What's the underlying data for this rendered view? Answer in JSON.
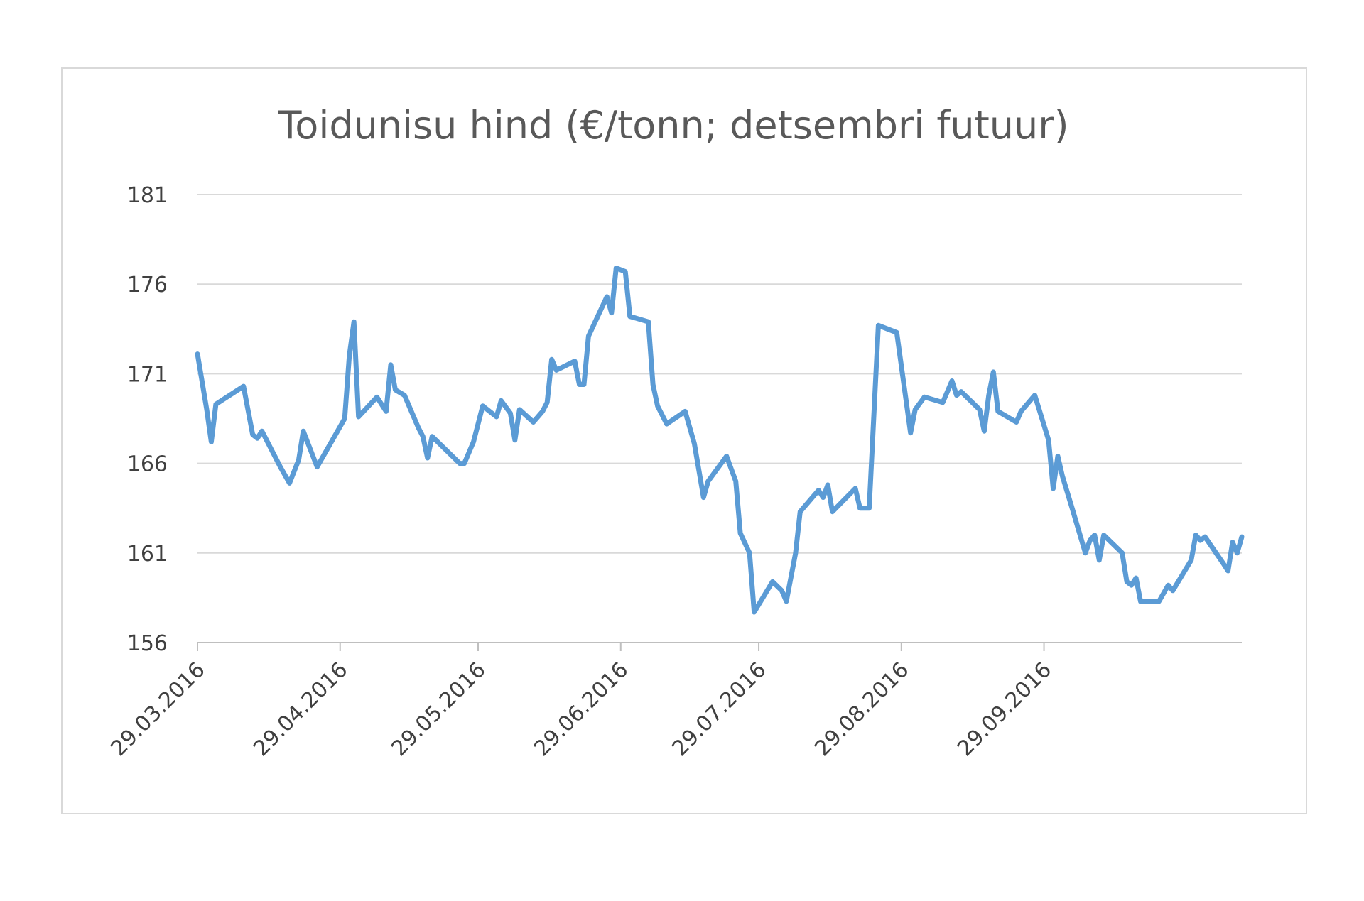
{
  "chart_data": {
    "type": "line",
    "title": "Toidunisu hind (€/tonn; detsembri futuur)",
    "xlabel": "",
    "ylabel": "",
    "ylim": [
      156,
      181
    ],
    "y_ticks": [
      "156",
      "161",
      "166",
      "171",
      "176",
      "181"
    ],
    "x_ticks": [
      "29.03.2016",
      "29.04.2016",
      "29.05.2016",
      "29.06.2016",
      "29.07.2016",
      "29.08.2016",
      "29.09.2016"
    ],
    "grid": true,
    "legend": "none",
    "colors": {
      "line": "#5b9bd5"
    },
    "series": [
      {
        "points": [
          [
            "2016-03-29",
            172.1
          ],
          [
            "2016-03-31",
            169.0
          ],
          [
            "2016-04-01",
            167.2
          ],
          [
            "2016-04-02",
            169.3
          ],
          [
            "2016-04-08",
            170.3
          ],
          [
            "2016-04-10",
            167.6
          ],
          [
            "2016-04-11",
            167.4
          ],
          [
            "2016-04-12",
            167.8
          ],
          [
            "2016-04-16",
            165.8
          ],
          [
            "2016-04-18",
            164.9
          ],
          [
            "2016-04-20",
            166.2
          ],
          [
            "2016-04-21",
            167.8
          ],
          [
            "2016-04-24",
            165.8
          ],
          [
            "2016-04-30",
            168.5
          ],
          [
            "2016-05-01",
            172.0
          ],
          [
            "2016-05-02",
            173.9
          ],
          [
            "2016-05-03",
            168.6
          ],
          [
            "2016-05-07",
            169.7
          ],
          [
            "2016-05-09",
            168.9
          ],
          [
            "2016-05-10",
            171.5
          ],
          [
            "2016-05-11",
            170.1
          ],
          [
            "2016-05-13",
            169.8
          ],
          [
            "2016-05-16",
            168.0
          ],
          [
            "2016-05-17",
            167.5
          ],
          [
            "2016-05-18",
            166.3
          ],
          [
            "2016-05-19",
            167.5
          ],
          [
            "2016-05-25",
            166.0
          ],
          [
            "2016-05-26",
            166.0
          ],
          [
            "2016-05-28",
            167.2
          ],
          [
            "2016-05-30",
            169.2
          ],
          [
            "2016-06-02",
            168.6
          ],
          [
            "2016-06-03",
            169.5
          ],
          [
            "2016-06-05",
            168.8
          ],
          [
            "2016-06-06",
            167.3
          ],
          [
            "2016-06-07",
            169.0
          ],
          [
            "2016-06-10",
            168.3
          ],
          [
            "2016-06-12",
            168.9
          ],
          [
            "2016-06-13",
            169.4
          ],
          [
            "2016-06-14",
            171.8
          ],
          [
            "2016-06-15",
            171.2
          ],
          [
            "2016-06-19",
            171.7
          ],
          [
            "2016-06-20",
            170.4
          ],
          [
            "2016-06-21",
            170.4
          ],
          [
            "2016-06-22",
            173.1
          ],
          [
            "2016-06-26",
            175.3
          ],
          [
            "2016-06-27",
            174.4
          ],
          [
            "2016-06-28",
            176.9
          ],
          [
            "2016-06-30",
            176.7
          ],
          [
            "2016-07-01",
            174.2
          ],
          [
            "2016-07-05",
            173.9
          ],
          [
            "2016-07-06",
            170.4
          ],
          [
            "2016-07-07",
            169.2
          ],
          [
            "2016-07-09",
            168.2
          ],
          [
            "2016-07-13",
            168.9
          ],
          [
            "2016-07-15",
            167.1
          ],
          [
            "2016-07-17",
            164.1
          ],
          [
            "2016-07-18",
            165.0
          ],
          [
            "2016-07-22",
            166.4
          ],
          [
            "2016-07-24",
            165.0
          ],
          [
            "2016-07-25",
            162.1
          ],
          [
            "2016-07-27",
            161.0
          ],
          [
            "2016-07-28",
            157.7
          ],
          [
            "2016-08-01",
            159.4
          ],
          [
            "2016-08-03",
            158.9
          ],
          [
            "2016-08-04",
            158.3
          ],
          [
            "2016-08-06",
            161.0
          ],
          [
            "2016-08-07",
            163.3
          ],
          [
            "2016-08-11",
            164.5
          ],
          [
            "2016-08-12",
            164.1
          ],
          [
            "2016-08-13",
            164.8
          ],
          [
            "2016-08-14",
            163.3
          ],
          [
            "2016-08-19",
            164.6
          ],
          [
            "2016-08-20",
            163.5
          ],
          [
            "2016-08-22",
            163.5
          ],
          [
            "2016-08-24",
            173.7
          ],
          [
            "2016-08-28",
            173.3
          ],
          [
            "2016-08-31",
            167.7
          ],
          [
            "2016-09-01",
            169.0
          ],
          [
            "2016-09-03",
            169.7
          ],
          [
            "2016-09-07",
            169.4
          ],
          [
            "2016-09-09",
            170.6
          ],
          [
            "2016-09-10",
            169.8
          ],
          [
            "2016-09-11",
            170.0
          ],
          [
            "2016-09-15",
            169.0
          ],
          [
            "2016-09-16",
            167.8
          ],
          [
            "2016-09-17",
            169.8
          ],
          [
            "2016-09-18",
            171.1
          ],
          [
            "2016-09-19",
            168.9
          ],
          [
            "2016-09-23",
            168.3
          ],
          [
            "2016-09-24",
            168.9
          ],
          [
            "2016-09-27",
            169.8
          ],
          [
            "2016-09-30",
            167.3
          ],
          [
            "2016-10-01",
            164.6
          ],
          [
            "2016-10-02",
            166.4
          ],
          [
            "2016-10-03",
            165.3
          ],
          [
            "2016-10-05",
            163.6
          ],
          [
            "2016-10-08",
            161.0
          ],
          [
            "2016-10-09",
            161.7
          ],
          [
            "2016-10-10",
            162.0
          ],
          [
            "2016-10-11",
            160.6
          ],
          [
            "2016-10-12",
            162.0
          ],
          [
            "2016-10-16",
            161.0
          ],
          [
            "2016-10-17",
            159.4
          ],
          [
            "2016-10-18",
            159.2
          ],
          [
            "2016-10-19",
            159.6
          ],
          [
            "2016-10-20",
            158.3
          ],
          [
            "2016-10-24",
            158.3
          ],
          [
            "2016-10-26",
            159.2
          ],
          [
            "2016-10-27",
            158.9
          ],
          [
            "2016-10-31",
            160.6
          ],
          [
            "2016-11-01",
            162.0
          ],
          [
            "2016-11-02",
            161.7
          ],
          [
            "2016-11-03",
            161.9
          ],
          [
            "2016-11-07",
            160.4
          ],
          [
            "2016-11-08",
            160.0
          ],
          [
            "2016-11-09",
            161.6
          ],
          [
            "2016-11-10",
            161.0
          ],
          [
            "2016-11-11",
            161.9
          ]
        ]
      }
    ]
  }
}
